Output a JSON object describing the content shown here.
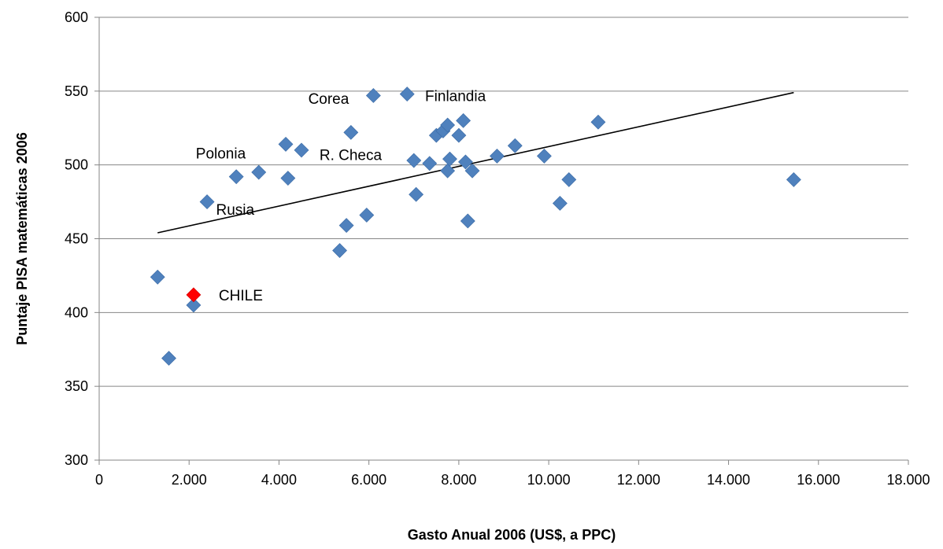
{
  "chart_data": {
    "type": "scatter",
    "title": "",
    "xlabel": "Gasto Anual  2006  (US$, a  PPC)",
    "ylabel": "Puntaje PISA matemáticas 2006",
    "xlim": [
      0,
      18000
    ],
    "ylim": [
      300,
      600
    ],
    "x_ticks": [
      0,
      2000,
      4000,
      6000,
      8000,
      10000,
      12000,
      14000,
      16000,
      18000
    ],
    "x_tick_labels": [
      "0",
      "2.000",
      "4.000",
      "6.000",
      "8.000",
      "10.000",
      "12.000",
      "14.000",
      "16.000",
      "18.000"
    ],
    "y_ticks": [
      300,
      350,
      400,
      450,
      500,
      550,
      600
    ],
    "y_tick_labels": [
      "300",
      "350",
      "400",
      "450",
      "500",
      "550",
      "600"
    ],
    "grid": "horizontal",
    "colors": {
      "points": "#4f81bd",
      "highlight": "#ff0000",
      "trend": "#000000",
      "grid": "#868686"
    },
    "points": [
      [
        1300,
        424
      ],
      [
        1550,
        369
      ],
      [
        2100,
        405
      ],
      [
        2400,
        475
      ],
      [
        3050,
        492
      ],
      [
        3550,
        495
      ],
      [
        4150,
        514
      ],
      [
        4200,
        491
      ],
      [
        4500,
        510
      ],
      [
        5350,
        442
      ],
      [
        5500,
        459
      ],
      [
        5600,
        522
      ],
      [
        5950,
        466
      ],
      [
        6100,
        547
      ],
      [
        6850,
        548
      ],
      [
        7000,
        503
      ],
      [
        7050,
        480
      ],
      [
        7350,
        501
      ],
      [
        7500,
        520
      ],
      [
        7650,
        523
      ],
      [
        7750,
        527
      ],
      [
        7750,
        496
      ],
      [
        7800,
        504
      ],
      [
        8000,
        520
      ],
      [
        8100,
        530
      ],
      [
        8150,
        502
      ],
      [
        8200,
        462
      ],
      [
        8300,
        496
      ],
      [
        8850,
        506
      ],
      [
        9250,
        513
      ],
      [
        9900,
        506
      ],
      [
        10250,
        474
      ],
      [
        10450,
        490
      ],
      [
        11100,
        529
      ],
      [
        15450,
        490
      ]
    ],
    "highlight_point": {
      "x": 2100,
      "y": 412,
      "label": "CHILE"
    },
    "trendline": {
      "x": [
        1300,
        15450
      ],
      "y": [
        454,
        549
      ]
    },
    "annotations": [
      {
        "text": "Corea",
        "x": 4650,
        "y": 545
      },
      {
        "text": "Finlandia",
        "x": 7250,
        "y": 547
      },
      {
        "text": "Polonia",
        "x": 2150,
        "y": 508
      },
      {
        "text": "R. Checa",
        "x": 4900,
        "y": 507
      },
      {
        "text": "Rusia",
        "x": 2600,
        "y": 470
      }
    ]
  }
}
